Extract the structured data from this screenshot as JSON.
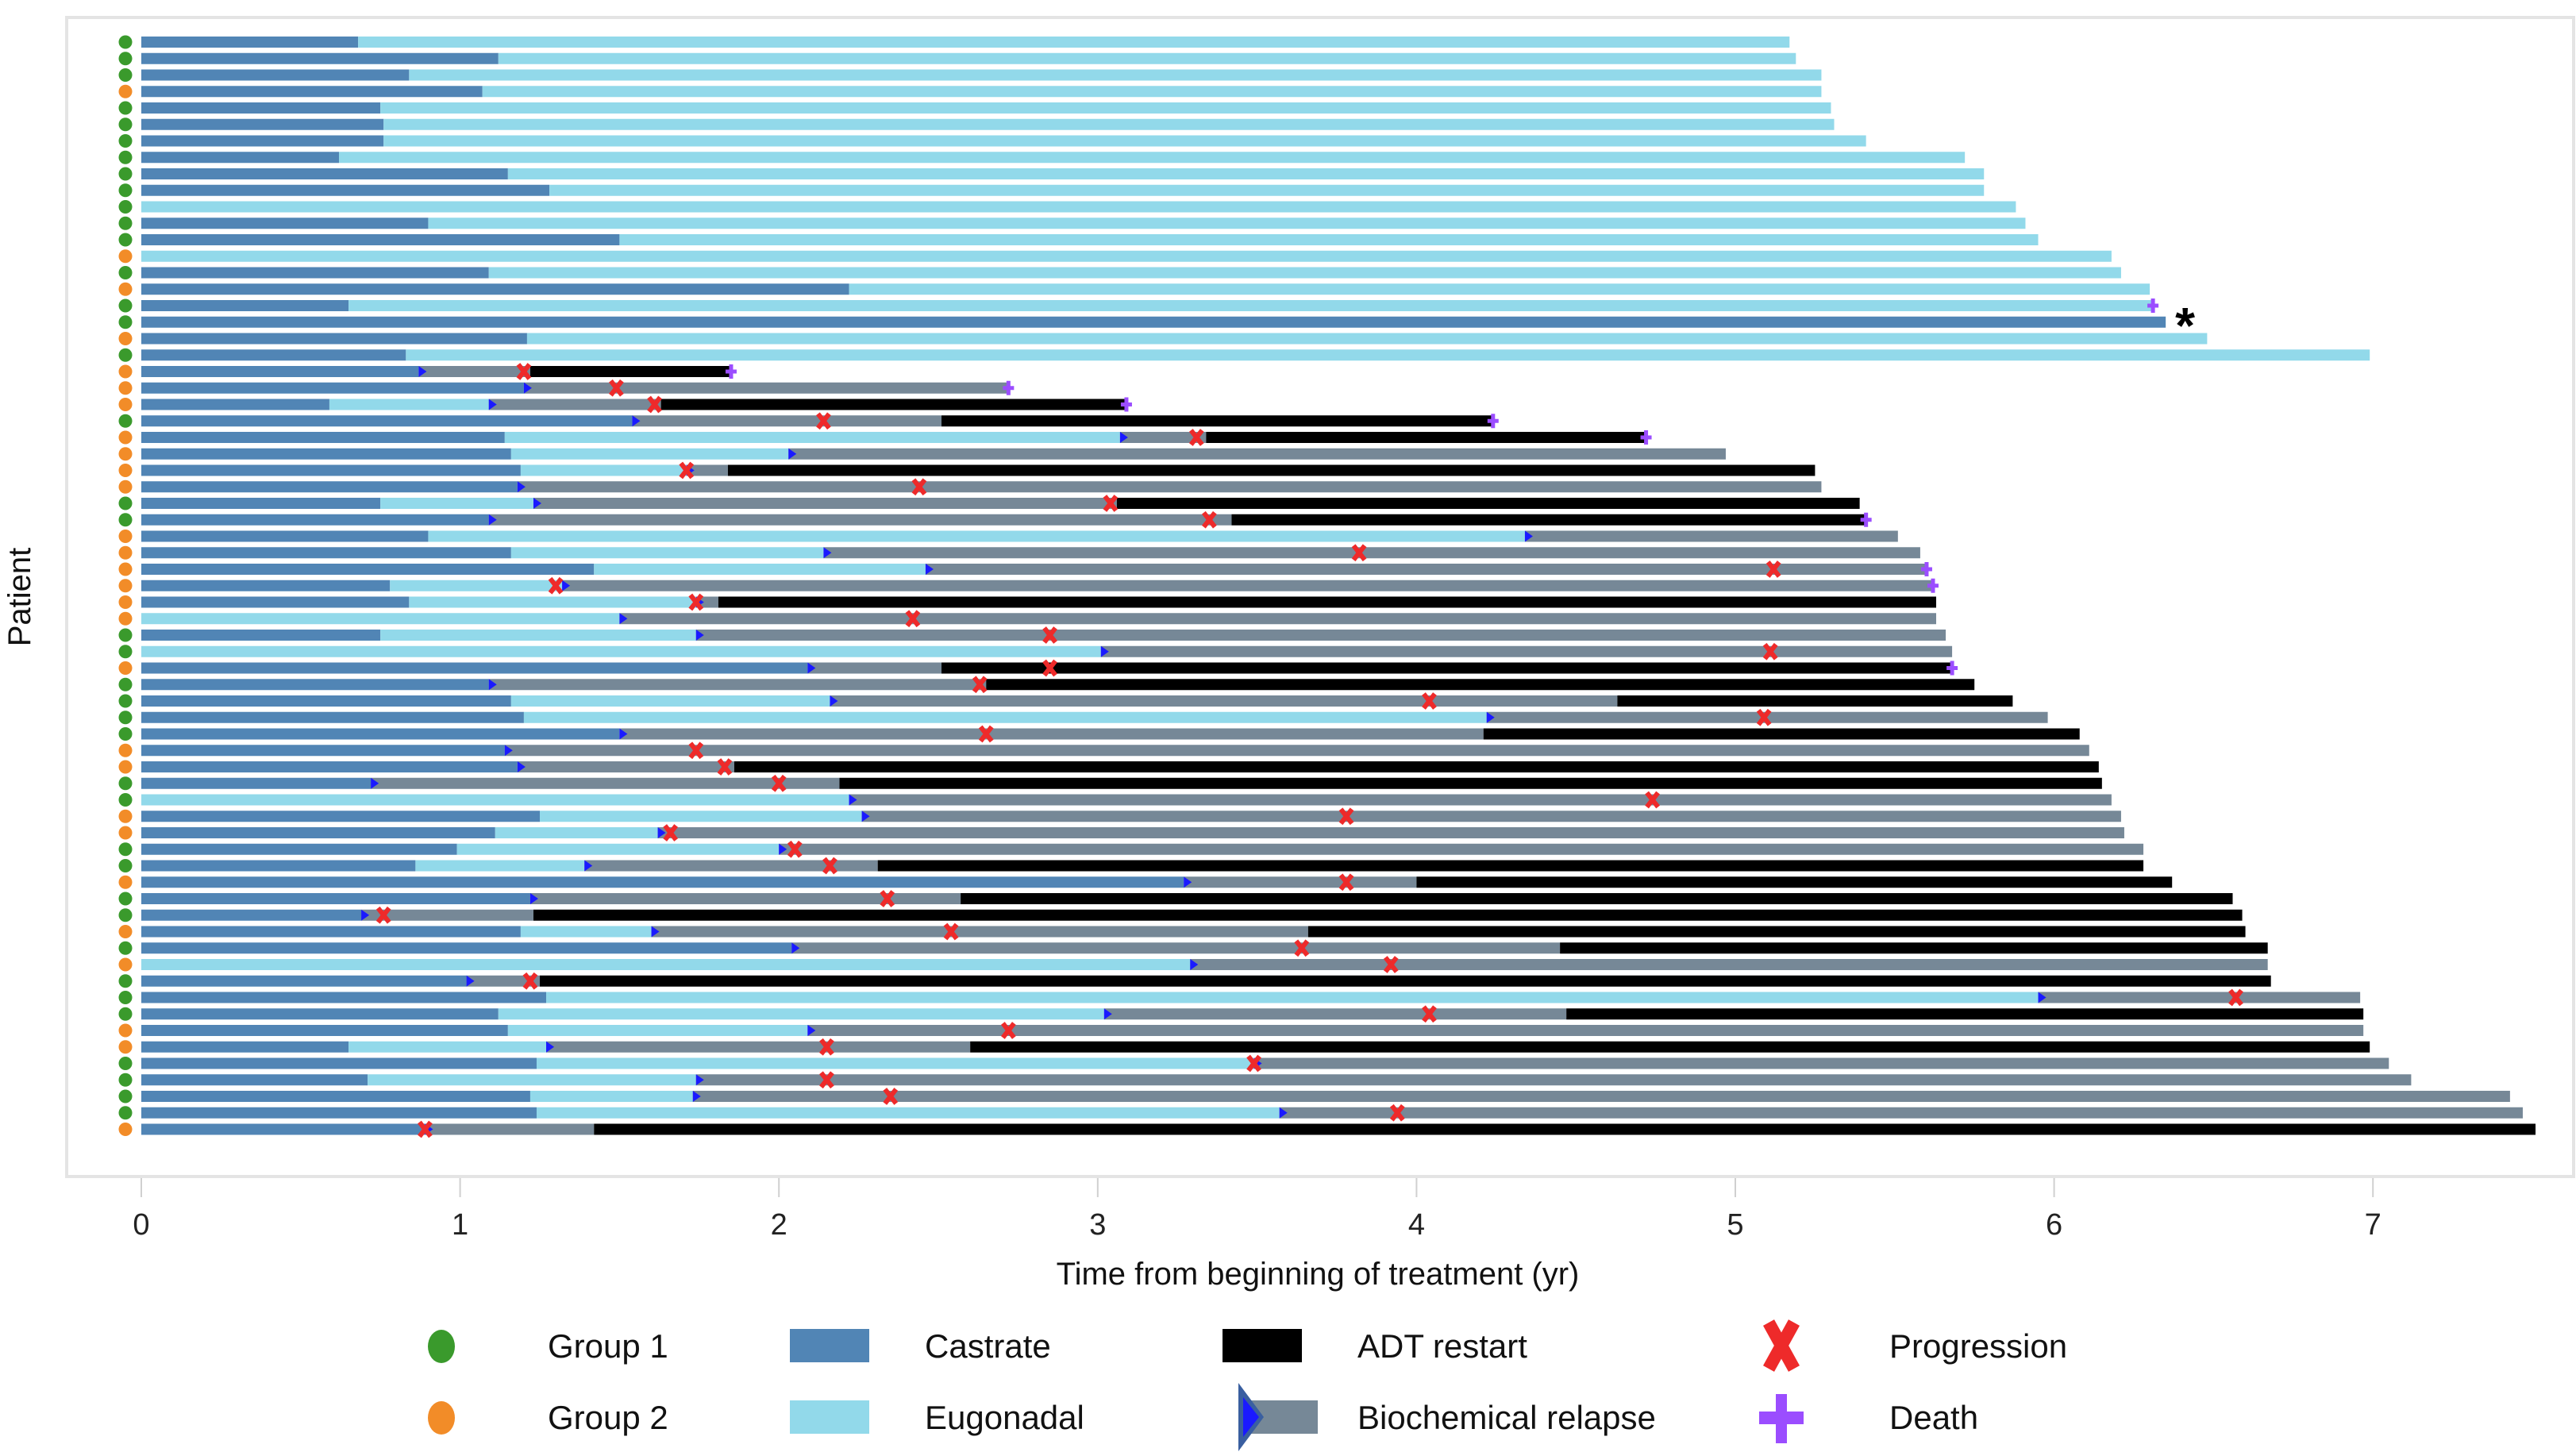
{
  "chart_data": {
    "type": "swimmer",
    "title": "",
    "xlabel": "Time from beginning of treatment (yr)",
    "ylabel": "Patient",
    "xlim": [
      0,
      7.5
    ],
    "xticks": [
      "0",
      "1",
      "2",
      "3",
      "4",
      "5",
      "6",
      "7"
    ],
    "grid": false,
    "legend_position": "bottom",
    "colors": {
      "group1": "#3a9a2c",
      "group2": "#f28c28",
      "castrate": "#5185b5",
      "eugonadal": "#92d9ea",
      "adt_restart": "#000000",
      "biochemical_relapse": "#768897",
      "relapse_marker": "#1a1aff",
      "progression": "#ee2a2a",
      "death": "#9b4dff"
    },
    "legend": [
      {
        "key": "group1",
        "label": "Group 1",
        "shape": "dot"
      },
      {
        "key": "group2",
        "label": "Group 2",
        "shape": "dot"
      },
      {
        "key": "castrate",
        "label": "Castrate",
        "shape": "rect"
      },
      {
        "key": "eugonadal",
        "label": "Eugonadal",
        "shape": "rect"
      },
      {
        "key": "adt_restart",
        "label": "ADT restart",
        "shape": "rect"
      },
      {
        "key": "biochemical_relapse",
        "label": "Biochemical relapse",
        "shape": "relapse"
      },
      {
        "key": "progression",
        "label": "Progression",
        "shape": "x"
      },
      {
        "key": "death",
        "label": "Death",
        "shape": "plus"
      }
    ],
    "annotation": {
      "row": 18,
      "text": "*"
    },
    "patients": [
      {
        "group": 1,
        "castrate": 0.68,
        "eugonadal_end": 5.17,
        "relapse": null,
        "adt": null,
        "end": 5.17,
        "progression": [],
        "death": null
      },
      {
        "group": 1,
        "castrate": 1.12,
        "eugonadal_end": 5.19,
        "relapse": null,
        "adt": null,
        "end": 5.19,
        "progression": [],
        "death": null
      },
      {
        "group": 1,
        "castrate": 0.84,
        "eugonadal_end": 5.27,
        "relapse": null,
        "adt": null,
        "end": 5.27,
        "progression": [],
        "death": null
      },
      {
        "group": 2,
        "castrate": 1.07,
        "eugonadal_end": 5.27,
        "relapse": null,
        "adt": null,
        "end": 5.27,
        "progression": [],
        "death": null
      },
      {
        "group": 1,
        "castrate": 0.75,
        "eugonadal_end": 5.3,
        "relapse": null,
        "adt": null,
        "end": 5.3,
        "progression": [],
        "death": null
      },
      {
        "group": 1,
        "castrate": 0.76,
        "eugonadal_end": 5.31,
        "relapse": null,
        "adt": null,
        "end": 5.31,
        "progression": [],
        "death": null
      },
      {
        "group": 1,
        "castrate": 0.76,
        "eugonadal_end": 5.41,
        "relapse": null,
        "adt": null,
        "end": 5.41,
        "progression": [],
        "death": null
      },
      {
        "group": 1,
        "castrate": 0.62,
        "eugonadal_end": 5.72,
        "relapse": null,
        "adt": null,
        "end": 5.72,
        "progression": [],
        "death": null
      },
      {
        "group": 1,
        "castrate": 1.15,
        "eugonadal_end": 5.78,
        "relapse": null,
        "adt": null,
        "end": 5.78,
        "progression": [],
        "death": null
      },
      {
        "group": 1,
        "castrate": 1.28,
        "eugonadal_end": 5.78,
        "relapse": null,
        "adt": null,
        "end": 5.78,
        "progression": [],
        "death": null
      },
      {
        "group": 1,
        "castrate": 0,
        "eugonadal_end": 5.88,
        "relapse": null,
        "adt": null,
        "end": 5.88,
        "progression": [],
        "death": null
      },
      {
        "group": 1,
        "castrate": 0.9,
        "eugonadal_end": 5.91,
        "relapse": null,
        "adt": null,
        "end": 5.91,
        "progression": [],
        "death": null
      },
      {
        "group": 1,
        "castrate": 1.5,
        "eugonadal_end": 5.95,
        "relapse": null,
        "adt": null,
        "end": 5.95,
        "progression": [],
        "death": null
      },
      {
        "group": 2,
        "castrate": 0,
        "eugonadal_end": 6.18,
        "relapse": null,
        "adt": null,
        "end": 6.18,
        "progression": [],
        "death": null
      },
      {
        "group": 1,
        "castrate": 1.09,
        "eugonadal_end": 6.21,
        "relapse": null,
        "adt": null,
        "end": 6.21,
        "progression": [],
        "death": null
      },
      {
        "group": 2,
        "castrate": 2.22,
        "eugonadal_end": 6.3,
        "relapse": null,
        "adt": null,
        "end": 6.3,
        "progression": [],
        "death": null
      },
      {
        "group": 1,
        "castrate": 0.65,
        "eugonadal_end": 6.31,
        "relapse": null,
        "adt": null,
        "end": 6.31,
        "progression": [],
        "death": 6.31
      },
      {
        "group": 1,
        "castrate": 6.35,
        "eugonadal_end": 6.35,
        "relapse": null,
        "adt": null,
        "end": 6.35,
        "progression": [],
        "death": null
      },
      {
        "group": 2,
        "castrate": 1.21,
        "eugonadal_end": 6.48,
        "relapse": null,
        "adt": null,
        "end": 6.48,
        "progression": [],
        "death": null
      },
      {
        "group": 1,
        "castrate": 0.83,
        "eugonadal_end": 6.99,
        "relapse": null,
        "adt": null,
        "end": 6.99,
        "progression": [],
        "death": null
      },
      {
        "group": 2,
        "castrate": 0.87,
        "eugonadal_end": 0.87,
        "relapse": 0.87,
        "adt": 1.22,
        "end": 1.85,
        "progression": [
          1.2
        ],
        "death": 1.85
      },
      {
        "group": 2,
        "castrate": 1.2,
        "eugonadal_end": 1.2,
        "relapse": 1.2,
        "adt": null,
        "end": 2.72,
        "progression": [
          1.49
        ],
        "death": 2.72
      },
      {
        "group": 2,
        "castrate": 0.59,
        "eugonadal_end": 1.09,
        "relapse": 1.09,
        "adt": 1.63,
        "end": 3.09,
        "progression": [
          1.61
        ],
        "death": 3.09
      },
      {
        "group": 1,
        "castrate": 1.54,
        "eugonadal_end": 1.54,
        "relapse": 1.54,
        "adt": 2.51,
        "end": 4.24,
        "progression": [
          2.14
        ],
        "death": 4.24
      },
      {
        "group": 2,
        "castrate": 1.14,
        "eugonadal_end": 3.07,
        "relapse": 3.07,
        "adt": 3.34,
        "end": 4.72,
        "progression": [
          3.31
        ],
        "death": 4.72
      },
      {
        "group": 2,
        "castrate": 1.16,
        "eugonadal_end": 2.03,
        "relapse": 2.03,
        "adt": null,
        "end": 4.97,
        "progression": [],
        "death": null
      },
      {
        "group": 2,
        "castrate": 1.19,
        "eugonadal_end": 1.71,
        "relapse": 1.71,
        "adt": 1.84,
        "end": 5.25,
        "progression": [
          1.71
        ],
        "death": null
      },
      {
        "group": 2,
        "castrate": 1.18,
        "eugonadal_end": 1.18,
        "relapse": 1.18,
        "adt": null,
        "end": 5.27,
        "progression": [
          2.44
        ],
        "death": null
      },
      {
        "group": 1,
        "castrate": 0.75,
        "eugonadal_end": 1.23,
        "relapse": 1.23,
        "adt": 3.06,
        "end": 5.39,
        "progression": [
          3.04
        ],
        "death": null
      },
      {
        "group": 1,
        "castrate": 1.09,
        "eugonadal_end": 1.09,
        "relapse": 1.09,
        "adt": 3.42,
        "end": 5.41,
        "progression": [
          3.35
        ],
        "death": 5.41
      },
      {
        "group": 2,
        "castrate": 0.9,
        "eugonadal_end": 4.34,
        "relapse": 4.34,
        "adt": null,
        "end": 5.51,
        "progression": [],
        "death": null
      },
      {
        "group": 2,
        "castrate": 1.16,
        "eugonadal_end": 2.14,
        "relapse": 2.14,
        "adt": null,
        "end": 5.58,
        "progression": [
          3.82
        ],
        "death": null
      },
      {
        "group": 2,
        "castrate": 1.42,
        "eugonadal_end": 2.46,
        "relapse": 2.46,
        "adt": null,
        "end": 5.6,
        "progression": [
          5.12
        ],
        "death": 5.6
      },
      {
        "group": 2,
        "castrate": 0.78,
        "eugonadal_end": 1.32,
        "relapse": 1.32,
        "adt": null,
        "end": 5.62,
        "progression": [
          1.3
        ],
        "death": 5.62
      },
      {
        "group": 2,
        "castrate": 0.84,
        "eugonadal_end": 1.74,
        "relapse": 1.74,
        "adt": 1.81,
        "end": 5.63,
        "progression": [
          1.74
        ],
        "death": null
      },
      {
        "group": 2,
        "castrate": 0,
        "eugonadal_end": 1.5,
        "relapse": 1.5,
        "adt": null,
        "end": 5.63,
        "progression": [
          2.42
        ],
        "death": null
      },
      {
        "group": 1,
        "castrate": 0.75,
        "eugonadal_end": 1.74,
        "relapse": 1.74,
        "adt": null,
        "end": 5.66,
        "progression": [
          2.85
        ],
        "death": null
      },
      {
        "group": 1,
        "castrate": 0,
        "eugonadal_end": 3.01,
        "relapse": 3.01,
        "adt": null,
        "end": 5.68,
        "progression": [
          5.11
        ],
        "death": null
      },
      {
        "group": 2,
        "castrate": 2.09,
        "eugonadal_end": 2.09,
        "relapse": 2.09,
        "adt": 2.51,
        "end": 5.68,
        "progression": [
          2.85
        ],
        "death": 5.68
      },
      {
        "group": 1,
        "castrate": 1.09,
        "eugonadal_end": 1.09,
        "relapse": 1.09,
        "adt": 2.65,
        "end": 5.75,
        "progression": [
          2.63
        ],
        "death": null
      },
      {
        "group": 1,
        "castrate": 1.16,
        "eugonadal_end": 2.16,
        "relapse": 2.16,
        "adt": 4.63,
        "end": 5.87,
        "progression": [
          4.04
        ],
        "death": null
      },
      {
        "group": 1,
        "castrate": 1.2,
        "eugonadal_end": 4.22,
        "relapse": 4.22,
        "adt": null,
        "end": 5.98,
        "progression": [
          5.09
        ],
        "death": null
      },
      {
        "group": 1,
        "castrate": 1.5,
        "eugonadal_end": 1.5,
        "relapse": 1.5,
        "adt": 4.21,
        "end": 6.08,
        "progression": [
          2.65
        ],
        "death": null
      },
      {
        "group": 2,
        "castrate": 1.14,
        "eugonadal_end": 1.14,
        "relapse": 1.14,
        "adt": null,
        "end": 6.11,
        "progression": [
          1.74
        ],
        "death": null
      },
      {
        "group": 2,
        "castrate": 1.18,
        "eugonadal_end": 1.18,
        "relapse": 1.18,
        "adt": 1.86,
        "end": 6.14,
        "progression": [
          1.83
        ],
        "death": null
      },
      {
        "group": 1,
        "castrate": 0.72,
        "eugonadal_end": 0.72,
        "relapse": 0.72,
        "adt": 2.19,
        "end": 6.15,
        "progression": [
          2.0
        ],
        "death": null
      },
      {
        "group": 1,
        "castrate": 0,
        "eugonadal_end": 2.22,
        "relapse": 2.22,
        "adt": null,
        "end": 6.18,
        "progression": [
          4.74
        ],
        "death": null
      },
      {
        "group": 2,
        "castrate": 1.25,
        "eugonadal_end": 2.26,
        "relapse": 2.26,
        "adt": null,
        "end": 6.21,
        "progression": [
          3.78
        ],
        "death": null
      },
      {
        "group": 2,
        "castrate": 1.11,
        "eugonadal_end": 1.62,
        "relapse": 1.62,
        "adt": null,
        "end": 6.22,
        "progression": [
          1.66
        ],
        "death": null
      },
      {
        "group": 1,
        "castrate": 0.99,
        "eugonadal_end": 2.0,
        "relapse": 2.0,
        "adt": null,
        "end": 6.28,
        "progression": [
          2.05
        ],
        "death": null
      },
      {
        "group": 1,
        "castrate": 0.86,
        "eugonadal_end": 1.39,
        "relapse": 1.39,
        "adt": 2.31,
        "end": 6.28,
        "progression": [
          2.16
        ],
        "death": null
      },
      {
        "group": 2,
        "castrate": 3.27,
        "eugonadal_end": 3.27,
        "relapse": 3.27,
        "adt": 4.0,
        "end": 6.37,
        "progression": [
          3.78
        ],
        "death": null
      },
      {
        "group": 1,
        "castrate": 1.22,
        "eugonadal_end": 1.22,
        "relapse": 1.22,
        "adt": 2.57,
        "end": 6.56,
        "progression": [
          2.34
        ],
        "death": null
      },
      {
        "group": 1,
        "castrate": 0.69,
        "eugonadal_end": 0.69,
        "relapse": 0.69,
        "adt": 1.23,
        "end": 6.59,
        "progression": [
          0.76
        ],
        "death": null
      },
      {
        "group": 2,
        "castrate": 1.19,
        "eugonadal_end": 1.6,
        "relapse": 1.6,
        "adt": 3.66,
        "end": 6.6,
        "progression": [
          2.54
        ],
        "death": null
      },
      {
        "group": 1,
        "castrate": 2.04,
        "eugonadal_end": 2.04,
        "relapse": 2.04,
        "adt": 4.45,
        "end": 6.67,
        "progression": [
          3.64
        ],
        "death": null
      },
      {
        "group": 2,
        "castrate": 0,
        "eugonadal_end": 3.29,
        "relapse": 3.29,
        "adt": null,
        "end": 6.67,
        "progression": [
          3.92
        ],
        "death": null
      },
      {
        "group": 1,
        "castrate": 1.02,
        "eugonadal_end": 1.02,
        "relapse": 1.02,
        "adt": 1.25,
        "end": 6.68,
        "progression": [
          1.22
        ],
        "death": null
      },
      {
        "group": 1,
        "castrate": 1.27,
        "eugonadal_end": 5.95,
        "relapse": 5.95,
        "adt": null,
        "end": 6.96,
        "progression": [
          6.57
        ],
        "death": null
      },
      {
        "group": 1,
        "castrate": 1.12,
        "eugonadal_end": 3.02,
        "relapse": 3.02,
        "adt": 4.47,
        "end": 6.97,
        "progression": [
          4.04
        ],
        "death": null
      },
      {
        "group": 2,
        "castrate": 1.15,
        "eugonadal_end": 2.09,
        "relapse": 2.09,
        "adt": null,
        "end": 6.97,
        "progression": [
          2.72
        ],
        "death": null
      },
      {
        "group": 2,
        "castrate": 0.65,
        "eugonadal_end": 1.27,
        "relapse": 1.27,
        "adt": 2.6,
        "end": 6.99,
        "progression": [
          2.15
        ],
        "death": null
      },
      {
        "group": 1,
        "castrate": 1.24,
        "eugonadal_end": 3.49,
        "relapse": 3.49,
        "adt": null,
        "end": 7.05,
        "progression": [
          3.49
        ],
        "death": null
      },
      {
        "group": 1,
        "castrate": 0.71,
        "eugonadal_end": 1.74,
        "relapse": 1.74,
        "adt": null,
        "end": 7.12,
        "progression": [
          2.15
        ],
        "death": null
      },
      {
        "group": 1,
        "castrate": 1.22,
        "eugonadal_end": 1.73,
        "relapse": 1.73,
        "adt": null,
        "end": 7.43,
        "progression": [
          2.35
        ],
        "death": null
      },
      {
        "group": 1,
        "castrate": 1.24,
        "eugonadal_end": 3.57,
        "relapse": 3.57,
        "adt": null,
        "end": 7.47,
        "progression": [
          3.94
        ],
        "death": null
      },
      {
        "group": 2,
        "castrate": 0.89,
        "eugonadal_end": 0.89,
        "relapse": 0.89,
        "adt": 1.42,
        "end": 7.51,
        "progression": [
          0.89
        ],
        "death": null
      }
    ]
  }
}
